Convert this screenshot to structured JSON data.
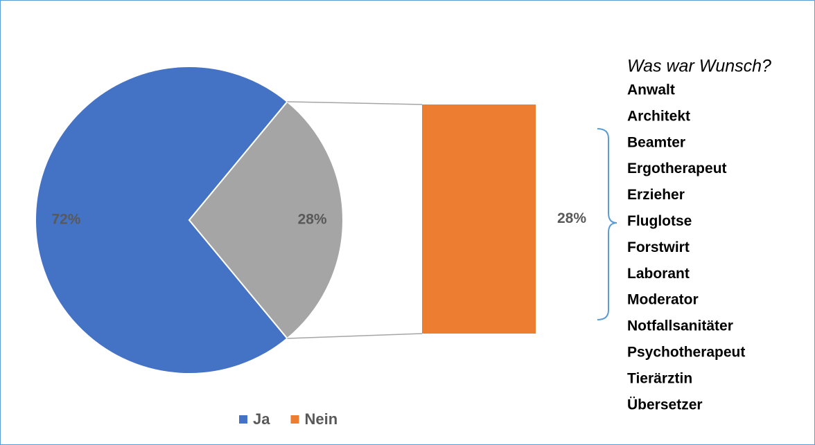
{
  "chart_data": {
    "type": "pie",
    "categories": [
      "Ja",
      "Nein"
    ],
    "values": [
      72,
      28
    ],
    "value_labels": [
      "72%",
      "28%"
    ],
    "colors": [
      "#4472c4",
      "#ed7d31"
    ],
    "other_color": "#a5a5a5",
    "legend": "bottom",
    "annotation": {
      "title": "Was war Wunsch?",
      "items": [
        "Anwalt",
        "Architekt",
        "Beamter",
        "Ergotherapeut",
        "Erzieher",
        "Fluglotse",
        "Forstwirt",
        "Laborant",
        "Moderator",
        "Notfallsanitäter",
        "Psychotherapeut",
        "Tierärztin",
        "Übersetzer"
      ]
    }
  }
}
